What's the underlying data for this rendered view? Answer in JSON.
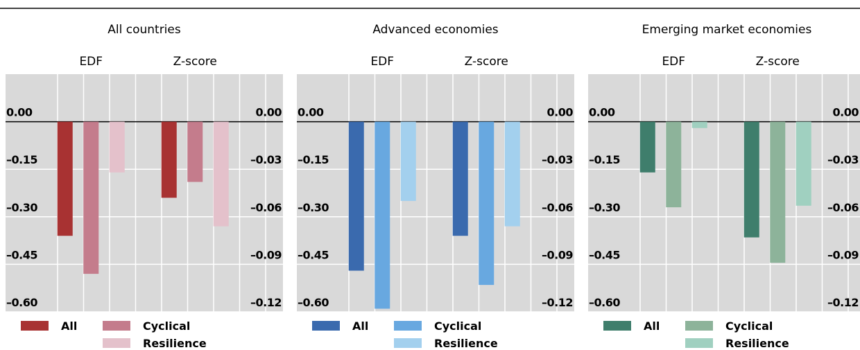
{
  "chart_data": [
    {
      "type": "bar",
      "title": "All countries",
      "categories": [
        "EDF",
        "Z-score"
      ],
      "category_axes": [
        "y",
        "y2"
      ],
      "series": [
        {
          "name": "All",
          "color": "#a83232",
          "values": [
            -0.36,
            -0.048
          ]
        },
        {
          "name": "Cyclical",
          "color": "#c47c8c",
          "values": [
            -0.48,
            -0.038
          ]
        },
        {
          "name": "Resilience",
          "color": "#e4c1cb",
          "values": [
            -0.16,
            -0.066
          ]
        }
      ],
      "ylim": [
        -0.6,
        0.15
      ],
      "yticks": [
        {
          "value": 0,
          "label": "0.00"
        },
        {
          "value": -0.15,
          "label": "–0.15"
        },
        {
          "value": -0.3,
          "label": "–0.30"
        },
        {
          "value": -0.45,
          "label": "–0.45"
        },
        {
          "value": -0.6,
          "label": "–0.60"
        }
      ],
      "y2lim": [
        -0.12,
        0.03
      ],
      "y2ticks": [
        {
          "value": 0,
          "label": "0.00"
        },
        {
          "value": -0.03,
          "label": "–0.03"
        },
        {
          "value": -0.06,
          "label": "–0.06"
        },
        {
          "value": -0.09,
          "label": "–0.09"
        },
        {
          "value": -0.12,
          "label": "–0.12"
        }
      ],
      "grid": true
    },
    {
      "type": "bar",
      "title": "Advanced economies",
      "categories": [
        "EDF",
        "Z-score"
      ],
      "category_axes": [
        "y",
        "y2"
      ],
      "series": [
        {
          "name": "All",
          "color": "#3a6aae",
          "values": [
            -0.47,
            -0.072
          ]
        },
        {
          "name": "Cyclical",
          "color": "#68a8e0",
          "values": [
            -0.59,
            -0.103
          ]
        },
        {
          "name": "Resilience",
          "color": "#a3d0ee",
          "values": [
            -0.25,
            -0.066
          ]
        }
      ],
      "ylim": [
        -0.6,
        0.15
      ],
      "yticks": [
        {
          "value": 0,
          "label": "0.00"
        },
        {
          "value": -0.15,
          "label": "–0.15"
        },
        {
          "value": -0.3,
          "label": "–0.30"
        },
        {
          "value": -0.45,
          "label": "–0.45"
        },
        {
          "value": -0.6,
          "label": "–0.60"
        }
      ],
      "y2lim": [
        -0.12,
        0.03
      ],
      "y2ticks": [
        {
          "value": 0,
          "label": "0.00"
        },
        {
          "value": -0.03,
          "label": "–0.03"
        },
        {
          "value": -0.06,
          "label": "–0.06"
        },
        {
          "value": -0.09,
          "label": "–0.09"
        },
        {
          "value": -0.12,
          "label": "–0.12"
        }
      ],
      "grid": true
    },
    {
      "type": "bar",
      "title": "Emerging market economies",
      "categories": [
        "EDF",
        "Z-score"
      ],
      "category_axes": [
        "y",
        "y2"
      ],
      "series": [
        {
          "name": "All",
          "color": "#3f7e6c",
          "values": [
            -0.16,
            -0.073
          ]
        },
        {
          "name": "Cyclical",
          "color": "#8db39a",
          "values": [
            -0.27,
            -0.089
          ]
        },
        {
          "name": "Resilience",
          "color": "#a0d0c0",
          "values": [
            -0.02,
            -0.053
          ]
        }
      ],
      "ylim": [
        -0.6,
        0.15
      ],
      "yticks": [
        {
          "value": 0,
          "label": "0.00"
        },
        {
          "value": -0.15,
          "label": "–0.15"
        },
        {
          "value": -0.3,
          "label": "–0.30"
        },
        {
          "value": -0.45,
          "label": "–0.45"
        },
        {
          "value": -0.6,
          "label": "–0.60"
        }
      ],
      "y2lim": [
        -0.12,
        0.03
      ],
      "y2ticks": [
        {
          "value": 0,
          "label": "0.00"
        },
        {
          "value": -0.03,
          "label": "–0.03"
        },
        {
          "value": -0.06,
          "label": "–0.06"
        },
        {
          "value": -0.09,
          "label": "–0.09"
        },
        {
          "value": -0.12,
          "label": "–0.12"
        }
      ],
      "grid": true
    }
  ]
}
